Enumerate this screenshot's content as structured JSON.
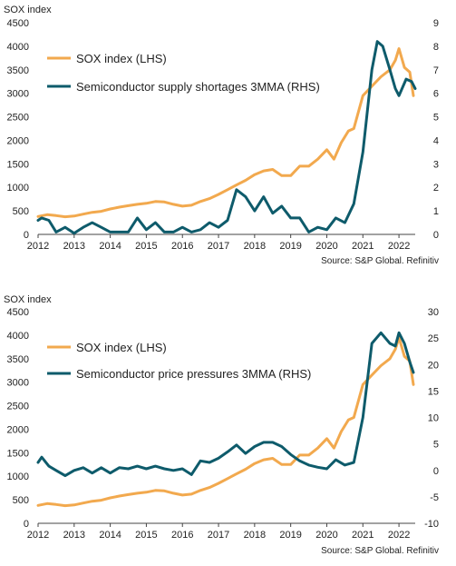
{
  "colors": {
    "sox": "#F2A94E",
    "rhs": "#0E5B6B",
    "axis": "#444444",
    "grid": "#cccccc"
  },
  "chart_data": [
    {
      "type": "line",
      "title": "SOX index",
      "source": "Source: S&P Global. Refinitiv",
      "x_ticks": [
        "2012",
        "2013",
        "2014",
        "2015",
        "2016",
        "2017",
        "2018",
        "2019",
        "2020",
        "2021",
        "2022"
      ],
      "xlim": [
        2012.0,
        2022.45
      ],
      "ylim_left": [
        0,
        4500
      ],
      "y_ticks_left": [
        0,
        500,
        1000,
        1500,
        2000,
        2500,
        3000,
        3500,
        4000,
        4500
      ],
      "ylim_right": [
        0,
        9
      ],
      "y_ticks_right": [
        0,
        1,
        2,
        3,
        4,
        5,
        6,
        7,
        8,
        9
      ],
      "legend_position": "top-left",
      "series": [
        {
          "name": "SOX index (LHS)",
          "axis": "left",
          "color": "#F2A94E",
          "points": [
            [
              2012.0,
              380
            ],
            [
              2012.25,
              420
            ],
            [
              2012.5,
              400
            ],
            [
              2012.75,
              375
            ],
            [
              2013.0,
              390
            ],
            [
              2013.25,
              430
            ],
            [
              2013.5,
              470
            ],
            [
              2013.75,
              490
            ],
            [
              2014.0,
              540
            ],
            [
              2014.25,
              580
            ],
            [
              2014.5,
              610
            ],
            [
              2014.75,
              640
            ],
            [
              2015.0,
              660
            ],
            [
              2015.25,
              700
            ],
            [
              2015.5,
              690
            ],
            [
              2015.75,
              640
            ],
            [
              2016.0,
              600
            ],
            [
              2016.25,
              620
            ],
            [
              2016.5,
              700
            ],
            [
              2016.75,
              760
            ],
            [
              2017.0,
              850
            ],
            [
              2017.25,
              950
            ],
            [
              2017.5,
              1050
            ],
            [
              2017.75,
              1150
            ],
            [
              2018.0,
              1270
            ],
            [
              2018.25,
              1350
            ],
            [
              2018.5,
              1380
            ],
            [
              2018.75,
              1250
            ],
            [
              2019.0,
              1250
            ],
            [
              2019.25,
              1450
            ],
            [
              2019.5,
              1450
            ],
            [
              2019.75,
              1600
            ],
            [
              2020.0,
              1800
            ],
            [
              2020.2,
              1600
            ],
            [
              2020.4,
              1950
            ],
            [
              2020.6,
              2200
            ],
            [
              2020.75,
              2250
            ],
            [
              2021.0,
              2950
            ],
            [
              2021.25,
              3150
            ],
            [
              2021.5,
              3350
            ],
            [
              2021.75,
              3500
            ],
            [
              2021.9,
              3700
            ],
            [
              2022.0,
              3950
            ],
            [
              2022.15,
              3550
            ],
            [
              2022.3,
              3450
            ],
            [
              2022.4,
              2950
            ]
          ]
        },
        {
          "name": "Semiconductor supply shortages 3MMA (RHS)",
          "axis": "right",
          "color": "#0E5B6B",
          "points": [
            [
              2012.0,
              0.6
            ],
            [
              2012.1,
              0.7
            ],
            [
              2012.3,
              0.6
            ],
            [
              2012.5,
              0.1
            ],
            [
              2012.75,
              0.3
            ],
            [
              2013.0,
              0.05
            ],
            [
              2013.25,
              0.3
            ],
            [
              2013.5,
              0.5
            ],
            [
              2013.75,
              0.3
            ],
            [
              2014.0,
              0.1
            ],
            [
              2014.25,
              0.1
            ],
            [
              2014.5,
              0.1
            ],
            [
              2014.75,
              0.7
            ],
            [
              2015.0,
              0.2
            ],
            [
              2015.25,
              0.5
            ],
            [
              2015.5,
              0.1
            ],
            [
              2015.75,
              0.1
            ],
            [
              2016.0,
              0.3
            ],
            [
              2016.25,
              0.1
            ],
            [
              2016.5,
              0.2
            ],
            [
              2016.75,
              0.5
            ],
            [
              2017.0,
              0.3
            ],
            [
              2017.25,
              0.6
            ],
            [
              2017.5,
              1.9
            ],
            [
              2017.75,
              1.6
            ],
            [
              2018.0,
              1.0
            ],
            [
              2018.25,
              1.6
            ],
            [
              2018.5,
              0.9
            ],
            [
              2018.75,
              1.2
            ],
            [
              2019.0,
              0.7
            ],
            [
              2019.25,
              0.7
            ],
            [
              2019.5,
              0.1
            ],
            [
              2019.75,
              0.3
            ],
            [
              2020.0,
              0.2
            ],
            [
              2020.25,
              0.7
            ],
            [
              2020.5,
              0.5
            ],
            [
              2020.75,
              1.3
            ],
            [
              2021.0,
              3.5
            ],
            [
              2021.25,
              7.0
            ],
            [
              2021.4,
              8.2
            ],
            [
              2021.55,
              8.0
            ],
            [
              2021.75,
              7.0
            ],
            [
              2021.9,
              6.2
            ],
            [
              2022.0,
              5.9
            ],
            [
              2022.2,
              6.6
            ],
            [
              2022.35,
              6.5
            ],
            [
              2022.45,
              6.2
            ]
          ]
        }
      ]
    },
    {
      "type": "line",
      "title": "SOX index",
      "source": "Source: S&P Global. Refinitiv",
      "x_ticks": [
        "2012",
        "2013",
        "2014",
        "2015",
        "2016",
        "2017",
        "2018",
        "2019",
        "2020",
        "2021",
        "2022"
      ],
      "xlim": [
        2012.0,
        2022.45
      ],
      "ylim_left": [
        0,
        4500
      ],
      "y_ticks_left": [
        0,
        500,
        1000,
        1500,
        2000,
        2500,
        3000,
        3500,
        4000,
        4500
      ],
      "ylim_right": [
        -10,
        30
      ],
      "y_ticks_right": [
        -10,
        -5,
        0,
        5,
        10,
        15,
        20,
        25,
        30
      ],
      "legend_position": "top-left",
      "series": [
        {
          "name": "SOX index (LHS)",
          "axis": "left",
          "color": "#F2A94E",
          "points": [
            [
              2012.0,
              380
            ],
            [
              2012.25,
              420
            ],
            [
              2012.5,
              400
            ],
            [
              2012.75,
              375
            ],
            [
              2013.0,
              390
            ],
            [
              2013.25,
              430
            ],
            [
              2013.5,
              470
            ],
            [
              2013.75,
              490
            ],
            [
              2014.0,
              540
            ],
            [
              2014.25,
              580
            ],
            [
              2014.5,
              610
            ],
            [
              2014.75,
              640
            ],
            [
              2015.0,
              660
            ],
            [
              2015.25,
              700
            ],
            [
              2015.5,
              690
            ],
            [
              2015.75,
              640
            ],
            [
              2016.0,
              600
            ],
            [
              2016.25,
              620
            ],
            [
              2016.5,
              700
            ],
            [
              2016.75,
              760
            ],
            [
              2017.0,
              850
            ],
            [
              2017.25,
              950
            ],
            [
              2017.5,
              1050
            ],
            [
              2017.75,
              1150
            ],
            [
              2018.0,
              1270
            ],
            [
              2018.25,
              1350
            ],
            [
              2018.5,
              1380
            ],
            [
              2018.75,
              1250
            ],
            [
              2019.0,
              1250
            ],
            [
              2019.25,
              1450
            ],
            [
              2019.5,
              1450
            ],
            [
              2019.75,
              1600
            ],
            [
              2020.0,
              1800
            ],
            [
              2020.2,
              1600
            ],
            [
              2020.4,
              1950
            ],
            [
              2020.6,
              2200
            ],
            [
              2020.75,
              2250
            ],
            [
              2021.0,
              2950
            ],
            [
              2021.25,
              3150
            ],
            [
              2021.5,
              3350
            ],
            [
              2021.75,
              3500
            ],
            [
              2021.9,
              3700
            ],
            [
              2022.0,
              3950
            ],
            [
              2022.15,
              3550
            ],
            [
              2022.3,
              3450
            ],
            [
              2022.4,
              2950
            ]
          ]
        },
        {
          "name": "Semiconductor price pressures 3MMA (RHS)",
          "axis": "right",
          "color": "#0E5B6B",
          "points": [
            [
              2012.0,
              1.5
            ],
            [
              2012.1,
              2.5
            ],
            [
              2012.3,
              0.8
            ],
            [
              2012.5,
              0.0
            ],
            [
              2012.75,
              -1.0
            ],
            [
              2013.0,
              0.0
            ],
            [
              2013.25,
              0.5
            ],
            [
              2013.5,
              -0.5
            ],
            [
              2013.75,
              0.5
            ],
            [
              2014.0,
              -0.5
            ],
            [
              2014.25,
              0.5
            ],
            [
              2014.5,
              0.3
            ],
            [
              2014.75,
              0.8
            ],
            [
              2015.0,
              0.3
            ],
            [
              2015.25,
              0.8
            ],
            [
              2015.5,
              0.3
            ],
            [
              2015.75,
              0.0
            ],
            [
              2016.0,
              0.3
            ],
            [
              2016.25,
              -0.8
            ],
            [
              2016.5,
              1.8
            ],
            [
              2016.75,
              1.5
            ],
            [
              2017.0,
              2.3
            ],
            [
              2017.25,
              3.5
            ],
            [
              2017.5,
              4.8
            ],
            [
              2017.75,
              3.2
            ],
            [
              2018.0,
              4.5
            ],
            [
              2018.25,
              5.3
            ],
            [
              2018.5,
              5.3
            ],
            [
              2018.75,
              4.5
            ],
            [
              2019.0,
              3.0
            ],
            [
              2019.25,
              1.8
            ],
            [
              2019.5,
              1.0
            ],
            [
              2019.75,
              0.6
            ],
            [
              2020.0,
              0.3
            ],
            [
              2020.25,
              2.0
            ],
            [
              2020.5,
              1.0
            ],
            [
              2020.75,
              1.5
            ],
            [
              2021.0,
              10.0
            ],
            [
              2021.25,
              24.0
            ],
            [
              2021.5,
              26.0
            ],
            [
              2021.75,
              24.0
            ],
            [
              2021.9,
              23.5
            ],
            [
              2022.0,
              26.0
            ],
            [
              2022.15,
              24.0
            ],
            [
              2022.3,
              20.5
            ],
            [
              2022.4,
              18.5
            ]
          ]
        }
      ]
    }
  ]
}
